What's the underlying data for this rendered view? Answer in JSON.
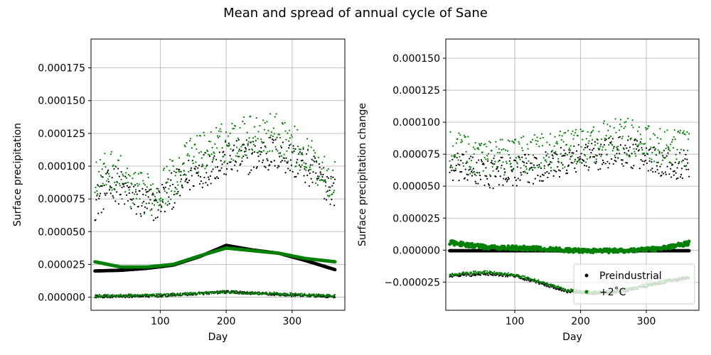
{
  "figure": {
    "suptitle": "Mean and spread of annual cycle of Sane"
  },
  "chart_data": [
    {
      "type": "scatter",
      "title": "",
      "xlabel": "Day",
      "ylabel": "Surface precipitation",
      "xlim": [
        -5,
        380
      ],
      "ylim": [
        -1e-05,
        0.000197
      ],
      "xticks": [
        100,
        200,
        300
      ],
      "xtick_labels": [
        "100",
        "200",
        "300"
      ],
      "yticks": [
        0,
        2.5e-05,
        5e-05,
        7.5e-05,
        0.0001,
        0.000125,
        0.00015,
        0.000175
      ],
      "ytick_labels": [
        "0.000000",
        "0.000025",
        "0.000050",
        "0.000075",
        "0.000100",
        "0.000125",
        "0.000150",
        "0.000175"
      ],
      "grid": true,
      "legend": null,
      "series": [
        {
          "name": "Preindustrial",
          "color": "#000000",
          "components": [
            {
              "kind": "mean",
              "keypoints": [
                [
                  1,
                  2e-05
                ],
                [
                  40,
                  2.05e-05
                ],
                [
                  80,
                  2.2e-05
                ],
                [
                  120,
                  2.45e-05
                ],
                [
                  160,
                  3.1e-05
                ],
                [
                  200,
                  3.95e-05
                ],
                [
                  240,
                  3.6e-05
                ],
                [
                  280,
                  3.35e-05
                ],
                [
                  320,
                  2.8e-05
                ],
                [
                  365,
                  2.1e-05
                ]
              ]
            },
            {
              "kind": "max",
              "keypoints": [
                [
                  1,
                  7.2e-05
                ],
                [
                  30,
                  8.8e-05
                ],
                [
                  60,
                  7.4e-05
                ],
                [
                  90,
                  7e-05
                ],
                [
                  120,
                  8.2e-05
                ],
                [
                  150,
                  9.5e-05
                ],
                [
                  200,
                  0.000105
                ],
                [
                  240,
                  0.000108
                ],
                [
                  280,
                  0.00011
                ],
                [
                  320,
                  0.0001
                ],
                [
                  365,
                  8.2e-05
                ]
              ],
              "scatter_amplitude": 1.4e-05
            },
            {
              "kind": "min",
              "keypoints": [
                [
                  1,
                  5e-07
                ],
                [
                  100,
                  1e-06
                ],
                [
                  200,
                  4e-06
                ],
                [
                  300,
                  1.5e-06
                ],
                [
                  365,
                  5e-07
                ]
              ],
              "scatter_amplitude": 1e-06
            }
          ]
        },
        {
          "name": "+2°C",
          "color": "#008000",
          "components": [
            {
              "kind": "mean",
              "keypoints": [
                [
                  1,
                  2.7e-05
                ],
                [
                  40,
                  2.3e-05
                ],
                [
                  80,
                  2.3e-05
                ],
                [
                  120,
                  2.5e-05
                ],
                [
                  160,
                  3.15e-05
                ],
                [
                  200,
                  3.75e-05
                ],
                [
                  240,
                  3.55e-05
                ],
                [
                  280,
                  3.35e-05
                ],
                [
                  320,
                  2.95e-05
                ],
                [
                  365,
                  2.7e-05
                ]
              ]
            },
            {
              "kind": "max",
              "keypoints": [
                [
                  1,
                  9e-05
                ],
                [
                  30,
                  9.8e-05
                ],
                [
                  60,
                  8e-05
                ],
                [
                  90,
                  7.8e-05
                ],
                [
                  120,
                  9.2e-05
                ],
                [
                  150,
                  0.000108
                ],
                [
                  200,
                  0.000118
                ],
                [
                  240,
                  0.000125
                ],
                [
                  280,
                  0.000125
                ],
                [
                  320,
                  0.000108
                ],
                [
                  365,
                  8.8e-05
                ]
              ],
              "scatter_amplitude": 1.6e-05
            },
            {
              "kind": "min",
              "keypoints": [
                [
                  1,
                  8e-07
                ],
                [
                  100,
                  1.5e-06
                ],
                [
                  200,
                  4e-06
                ],
                [
                  300,
                  2e-06
                ],
                [
                  365,
                  8e-07
                ]
              ],
              "scatter_amplitude": 1.2e-06
            }
          ]
        }
      ]
    },
    {
      "type": "scatter",
      "title": "",
      "xlabel": "Day",
      "ylabel": "Surface precipitation change",
      "xlim": [
        -5,
        380
      ],
      "ylim": [
        -4.7e-05,
        0.000165
      ],
      "xticks": [
        100,
        200,
        300
      ],
      "xtick_labels": [
        "100",
        "200",
        "300"
      ],
      "yticks": [
        -2.5e-05,
        0,
        2.5e-05,
        5e-05,
        7.5e-05,
        0.0001,
        0.000125,
        0.00015
      ],
      "ytick_labels": [
        "−0.000025",
        "0.000000",
        "0.000025",
        "0.000050",
        "0.000075",
        "0.000100",
        "0.000125",
        "0.000150"
      ],
      "grid": true,
      "legend": {
        "position": "lower right",
        "entries": [
          "Preindustrial",
          "+2˚C"
        ]
      },
      "series": [
        {
          "name": "Preindustrial",
          "color": "#000000",
          "components": [
            {
              "kind": "mean",
              "keypoints": [
                [
                  1,
                  -5e-07
                ],
                [
                  365,
                  -5e-07
                ]
              ]
            },
            {
              "kind": "max",
              "keypoints": [
                [
                  1,
                  6.5e-05
                ],
                [
                  60,
                  6e-05
                ],
                [
                  120,
                  6.3e-05
                ],
                [
                  200,
                  7.2e-05
                ],
                [
                  260,
                  7.8e-05
                ],
                [
                  320,
                  7e-05
                ],
                [
                  365,
                  6.6e-05
                ]
              ],
              "scatter_amplitude": 1.2e-05
            },
            {
              "kind": "min",
              "keypoints": [
                [
                  1,
                  -2e-05
                ],
                [
                  60,
                  -1.85e-05
                ],
                [
                  100,
                  -2e-05
                ],
                [
                  140,
                  -2.6e-05
                ],
                [
                  180,
                  -3.2e-05
                ],
                [
                  220,
                  -3.35e-05
                ],
                [
                  260,
                  -3.25e-05
                ],
                [
                  300,
                  -2.8e-05
                ],
                [
                  340,
                  -2.35e-05
                ],
                [
                  365,
                  -2.2e-05
                ]
              ],
              "scatter_amplitude": 1.2e-06
            }
          ]
        },
        {
          "name": "+2°C",
          "color": "#008000",
          "components": [
            {
              "kind": "mean",
              "keypoints": [
                [
                  1,
                  6e-06
                ],
                [
                  60,
                  2e-06
                ],
                [
                  120,
                  1.5e-06
                ],
                [
                  200,
                  -5e-07
                ],
                [
                  260,
                  -5e-07
                ],
                [
                  320,
                  1e-06
                ],
                [
                  365,
                  5.5e-06
                ]
              ],
              "scatter_amplitude": 1.5e-06
            },
            {
              "kind": "max",
              "keypoints": [
                [
                  1,
                  8e-05
                ],
                [
                  60,
                  7e-05
                ],
                [
                  120,
                  7.5e-05
                ],
                [
                  200,
                  8e-05
                ],
                [
                  260,
                  9e-05
                ],
                [
                  320,
                  8e-05
                ],
                [
                  365,
                  7.8e-05
                ]
              ],
              "scatter_amplitude": 1.5e-05
            },
            {
              "kind": "min",
              "keypoints": [
                [
                  1,
                  -1.9e-05
                ],
                [
                  60,
                  -1.7e-05
                ],
                [
                  100,
                  -1.95e-05
                ],
                [
                  140,
                  -2.5e-05
                ],
                [
                  180,
                  -3.15e-05
                ],
                [
                  220,
                  -3.3e-05
                ],
                [
                  260,
                  -3.2e-05
                ],
                [
                  300,
                  -2.75e-05
                ],
                [
                  340,
                  -2.3e-05
                ],
                [
                  365,
                  -2.15e-05
                ]
              ],
              "scatter_amplitude": 1.2e-06
            }
          ]
        }
      ]
    }
  ]
}
